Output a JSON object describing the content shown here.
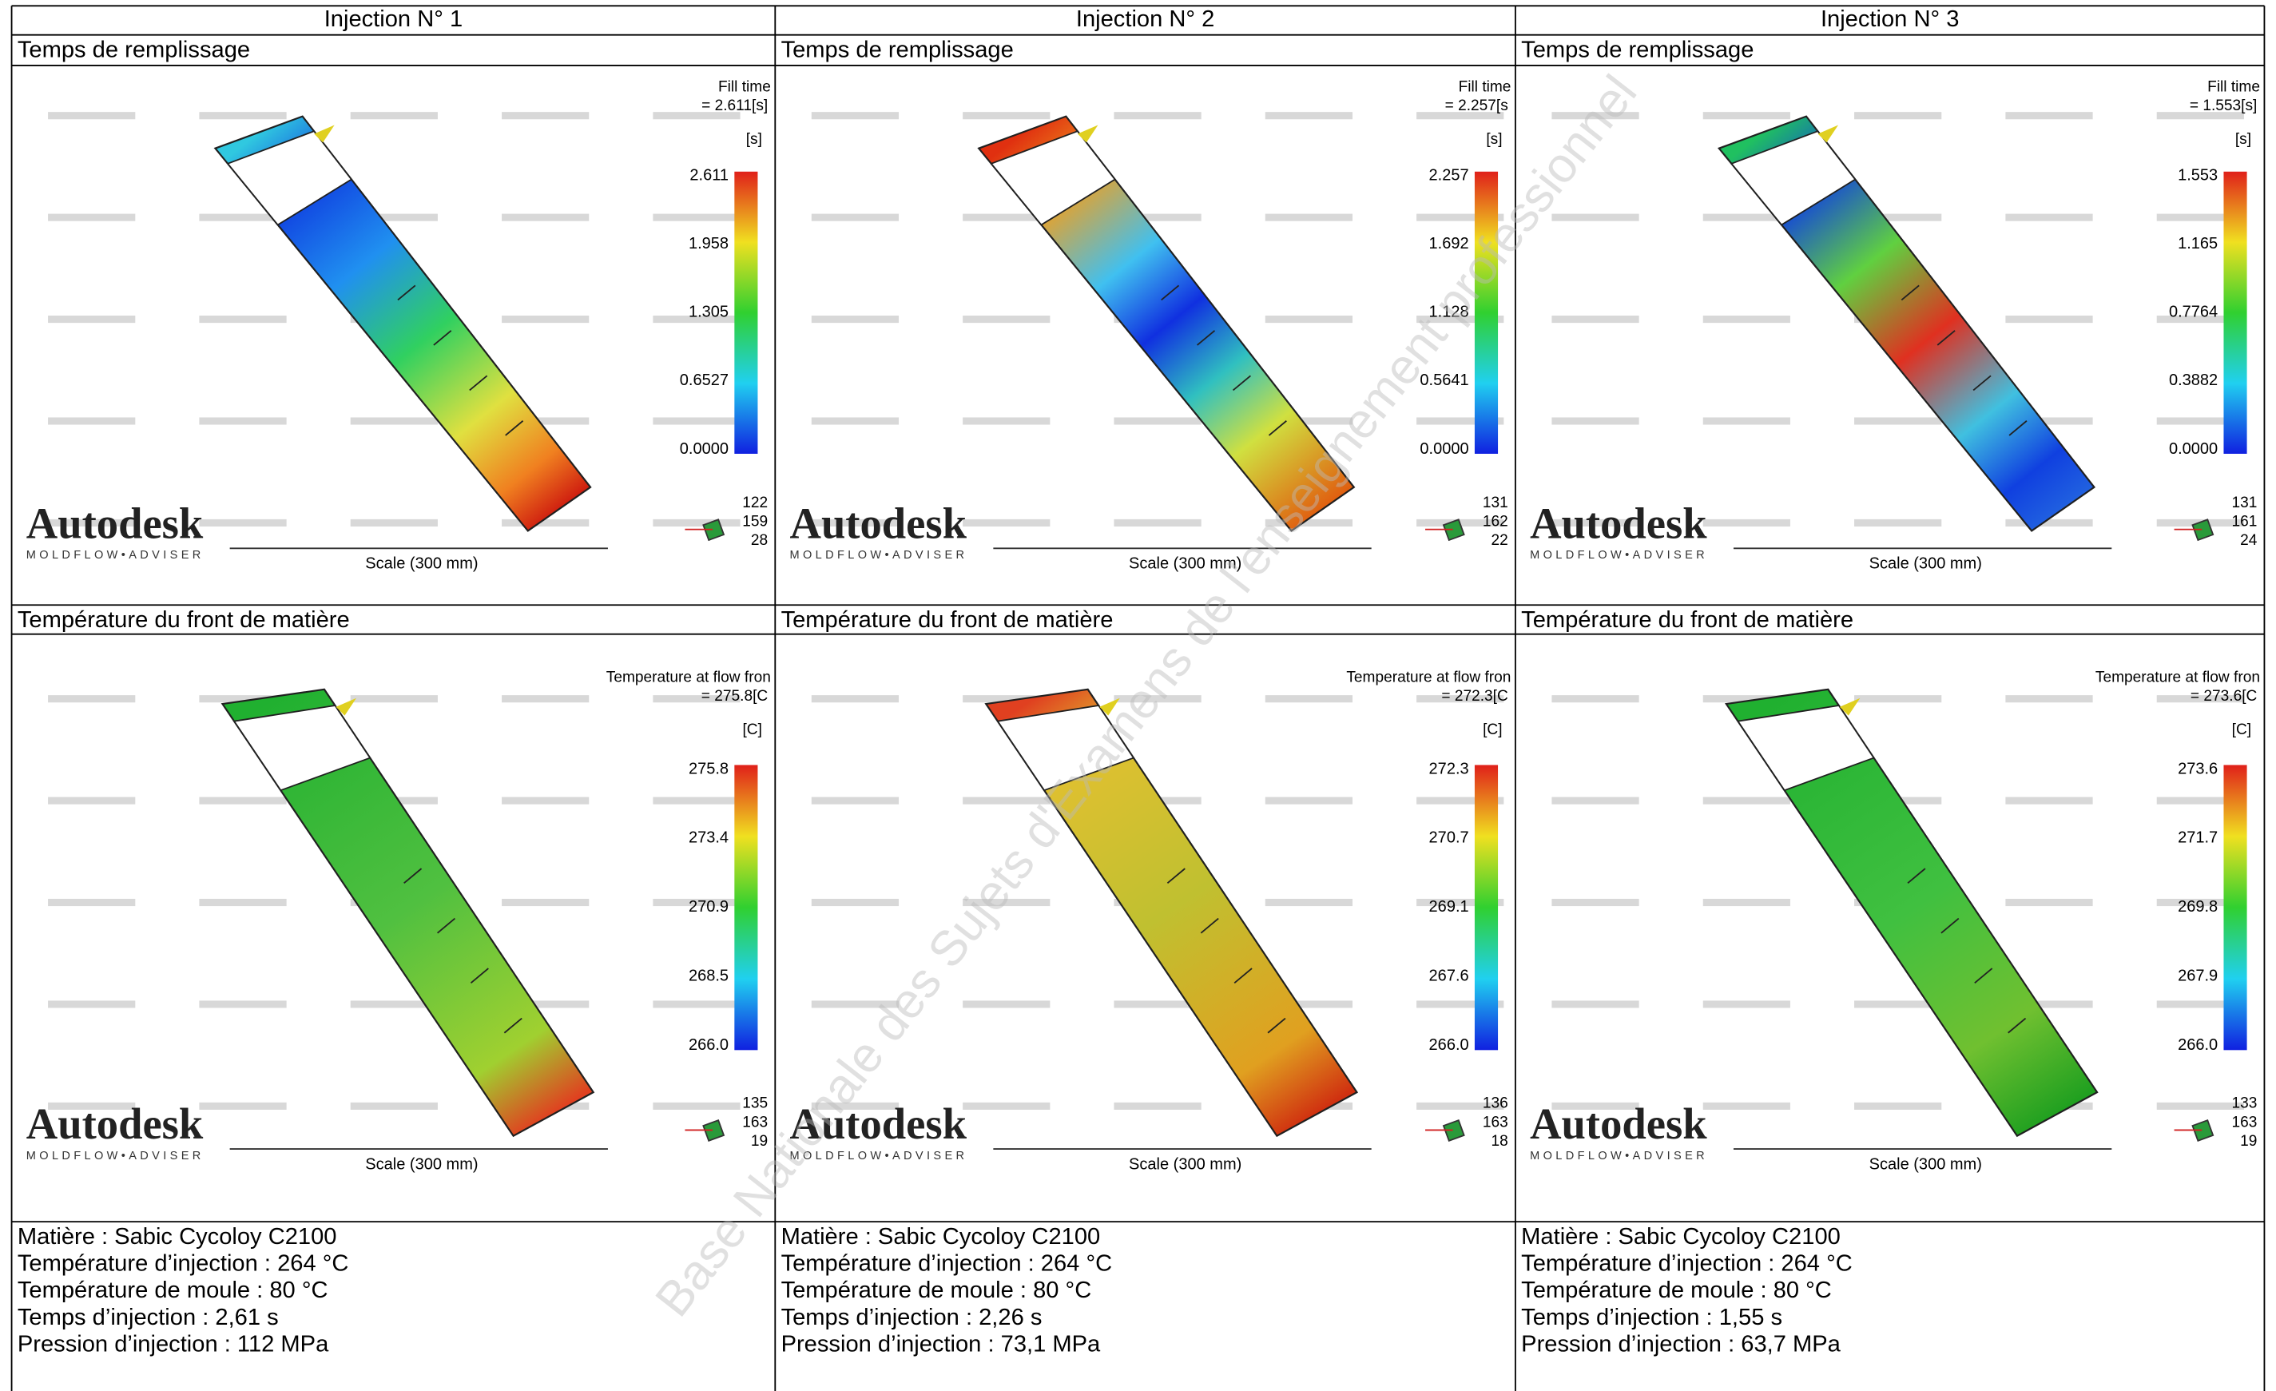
{
  "header": [
    "Injection  N° 1",
    "Injection  N° 2",
    "Injection  N° 3"
  ],
  "brand": {
    "logo": "Autodesk",
    "product": "MOLDFLOW•ADVISER"
  },
  "watermark": "Base Nationale des Sujets d'Examens de l'enseignement professionnel",
  "columns": [
    {
      "fill": {
        "title": "Temps de remplissage",
        "legend_title": "Fill time",
        "legend_value": "= 2.611[s]",
        "unit": "[s]",
        "ticks": [
          "2.611",
          "1.958",
          "1.305",
          "0.6527",
          "0.0000"
        ],
        "triad": [
          "122",
          "159",
          "28"
        ],
        "scale": "Scale (300 mm)"
      },
      "temp": {
        "title": "Température du front de matière",
        "legend_title": "Temperature at flow fron",
        "legend_value": "= 275.8[C",
        "unit": "[C]",
        "ticks": [
          "275.8",
          "273.4",
          "270.9",
          "268.5",
          "266.0"
        ],
        "triad": [
          "135",
          "163",
          "19"
        ],
        "scale": "Scale (300 mm)"
      },
      "info": [
        "Matière : Sabic Cycoloy C2100",
        "Température d’injection : 264 °C",
        "Température de moule : 80 °C",
        "Temps d’injection : 2,61 s",
        "Pression d’injection : 112 MPa"
      ]
    },
    {
      "fill": {
        "title": "Temps de remplissage",
        "legend_title": "Fill time",
        "legend_value": "= 2.257[s",
        "unit": "[s]",
        "ticks": [
          "2.257",
          "1.692",
          "1.128",
          "0.5641",
          "0.0000"
        ],
        "triad": [
          "131",
          "162",
          "22"
        ],
        "scale": "Scale (300 mm)"
      },
      "temp": {
        "title": "Température du front de matière",
        "legend_title": "Temperature at flow fron",
        "legend_value": "= 272.3[C",
        "unit": "[C]",
        "ticks": [
          "272.3",
          "270.7",
          "269.1",
          "267.6",
          "266.0"
        ],
        "triad": [
          "136",
          "163",
          "18"
        ],
        "scale": "Scale (300 mm)"
      },
      "info": [
        "Matière : Sabic Cycoloy C2100",
        "Température d’injection : 264 °C",
        "Température de moule : 80 °C",
        "Temps d’injection : 2,26 s",
        "Pression d’injection : 73,1 MPa"
      ]
    },
    {
      "fill": {
        "title": "Temps de remplissage",
        "legend_title": "Fill time",
        "legend_value": "= 1.553[s]",
        "unit": "[s]",
        "ticks": [
          "1.553",
          "1.165",
          "0.7764",
          "0.3882",
          "0.0000"
        ],
        "triad": [
          "131",
          "161",
          "24"
        ],
        "scale": "Scale (300 mm)"
      },
      "temp": {
        "title": "Température du front de matière",
        "legend_title": "Temperature at flow fron",
        "legend_value": "= 273.6[C",
        "unit": "[C]",
        "ticks": [
          "273.6",
          "271.7",
          "269.8",
          "267.9",
          "266.0"
        ],
        "triad": [
          "133",
          "163",
          "19"
        ],
        "scale": "Scale (300 mm)"
      },
      "info": [
        "Matière : Sabic Cycoloy C2100",
        "Température d’injection : 264 °C",
        "Température de moule : 80 °C",
        "Temps d’injection : 1,55 s",
        "Pression d’injection : 63,7 MPa"
      ]
    }
  ]
}
